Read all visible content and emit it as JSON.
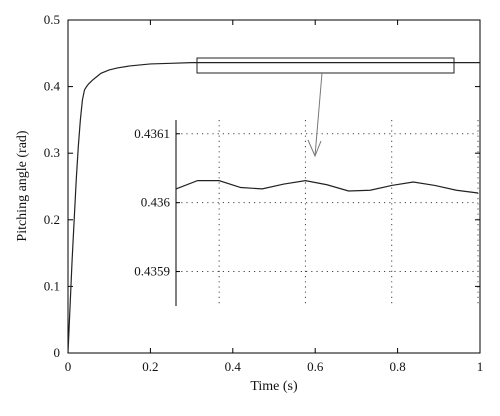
{
  "chart_data": [
    {
      "type": "line",
      "xlabel": "Time (s)",
      "ylabel": "Pitching angle (rad)",
      "xlim": [
        0,
        1
      ],
      "ylim": [
        0,
        0.5
      ],
      "xticks": [
        "0",
        "0.2",
        "0.4",
        "0.6",
        "0.8",
        "1"
      ],
      "yticks": [
        "0",
        "0.1",
        "0.2",
        "0.3",
        "0.4",
        "0.5"
      ],
      "grid": false,
      "series": [
        {
          "x": [
            0,
            0.005,
            0.01,
            0.015,
            0.02,
            0.025,
            0.03,
            0.035,
            0.04,
            0.045,
            0.05,
            0.06,
            0.07,
            0.08,
            0.1,
            0.12,
            0.15,
            0.2,
            0.25,
            0.3,
            0.4,
            0.5,
            0.6,
            0.7,
            0.8,
            0.9,
            1.0
          ],
          "y": [
            0,
            0.07,
            0.14,
            0.2,
            0.26,
            0.31,
            0.35,
            0.38,
            0.395,
            0.4,
            0.404,
            0.41,
            0.415,
            0.42,
            0.425,
            0.428,
            0.431,
            0.434,
            0.435,
            0.436,
            0.436,
            0.436,
            0.436,
            0.436,
            0.436,
            0.436,
            0.436
          ]
        }
      ]
    },
    {
      "type": "line",
      "role": "inset",
      "xlim": [
        0.3,
        1
      ],
      "ylim": [
        0.43585,
        0.43612
      ],
      "yticks": [
        "0.4359",
        "0.436",
        "0.4361"
      ],
      "grid": true,
      "series": [
        {
          "x": [
            0.3,
            0.35,
            0.4,
            0.45,
            0.5,
            0.55,
            0.6,
            0.65,
            0.7,
            0.75,
            0.8,
            0.85,
            0.9,
            0.95,
            1.0
          ],
          "y": [
            0.43602,
            0.436032,
            0.436032,
            0.436022,
            0.43602,
            0.436027,
            0.436032,
            0.436026,
            0.436017,
            0.436018,
            0.436025,
            0.43603,
            0.436025,
            0.436018,
            0.436014
          ]
        }
      ]
    }
  ]
}
